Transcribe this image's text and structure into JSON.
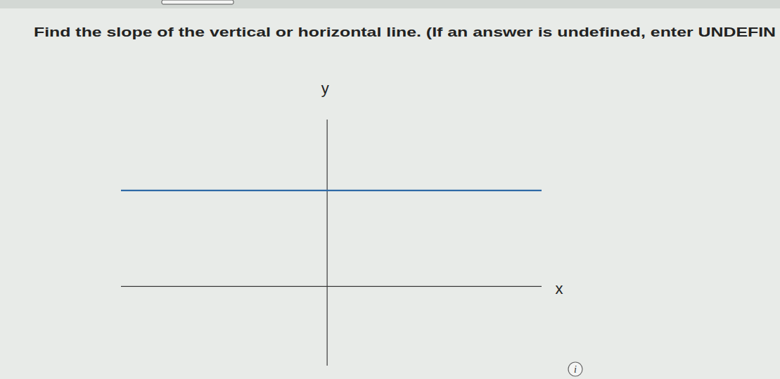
{
  "chart_data": {
    "type": "line",
    "title": "Find the slope of the vertical or horizontal line. (If an answer is undefined, enter UNDEFIN",
    "x_label": "x",
    "y_label": "y",
    "x": [
      -5,
      5.2
    ],
    "values": [
      2.3,
      2.3
    ],
    "color": "#2f6aa6",
    "xlim": [
      -5,
      5.2
    ],
    "ylim": [
      -1.9,
      4
    ],
    "tick_labels": false,
    "grid": false,
    "annotations": [
      "i"
    ]
  }
}
